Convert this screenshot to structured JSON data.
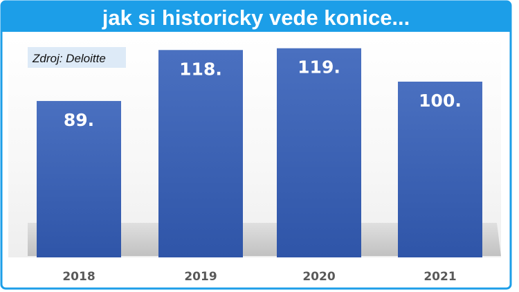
{
  "colors": {
    "frame": "#1c9ee8",
    "bar_top": "#4a70c0",
    "bar_bottom": "#2f55a8",
    "shadow": "#bfbfbf",
    "source_box": "#ddeaf7"
  },
  "chart_data": {
    "type": "bar",
    "title": "jak si historicky vede konice...",
    "source": "Zdroj: Deloitte",
    "categories": [
      "2018",
      "2019",
      "2020",
      "2021"
    ],
    "values": [
      89,
      118,
      119,
      100
    ],
    "data_labels": [
      "89.",
      "118.",
      "119.",
      "100."
    ],
    "xlabel": "",
    "ylabel": "",
    "ylim": [
      0,
      120
    ],
    "grid": false,
    "legend": "none"
  }
}
